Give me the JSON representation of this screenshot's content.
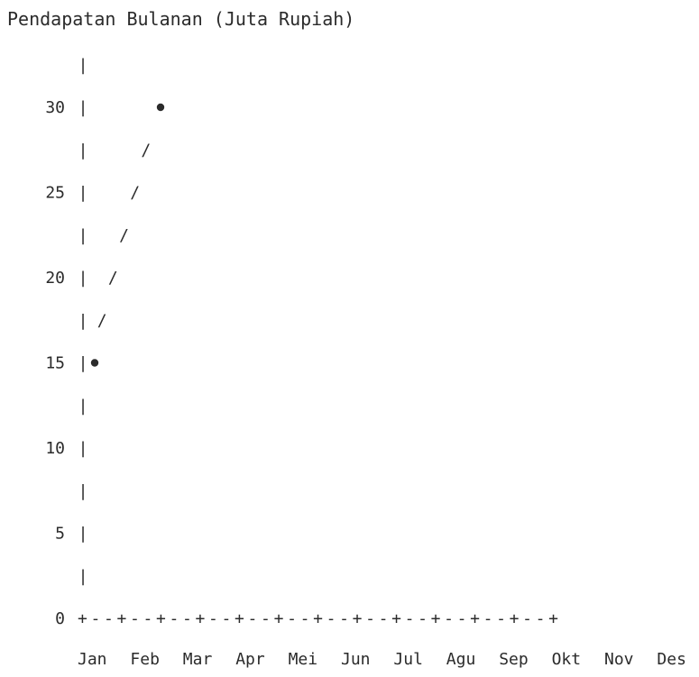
{
  "chart_data": {
    "type": "line",
    "style": "ascii-art",
    "title": "Pendapatan Bulanan (Juta Rupiah)",
    "xlabel": "",
    "ylabel": "",
    "categories": [
      "Jan",
      "Feb",
      "Mar",
      "Apr",
      "Mei",
      "Jun",
      "Jul",
      "Agu",
      "Sep",
      "Okt",
      "Nov",
      "Des"
    ],
    "series": [
      {
        "values": [
          15,
          30,
          null,
          null,
          null,
          null,
          null,
          null,
          null,
          null,
          null,
          null
        ]
      }
    ],
    "y_ticks": [
      "0",
      "5",
      "10",
      "15",
      "20",
      "25",
      "30"
    ],
    "y_tick_values": [
      0,
      5,
      10,
      15,
      20,
      25,
      30
    ],
    "ylim": [
      0,
      32.5
    ],
    "x_axis_text": "+--+--+--+--+--+--+--+--+--+--+--+--+",
    "axis_glyph": "|",
    "line_glyph": "/",
    "point_glyph": "•",
    "grid": false,
    "colors": {
      "text": "#2b2b2b",
      "background": "#ffffff"
    }
  }
}
